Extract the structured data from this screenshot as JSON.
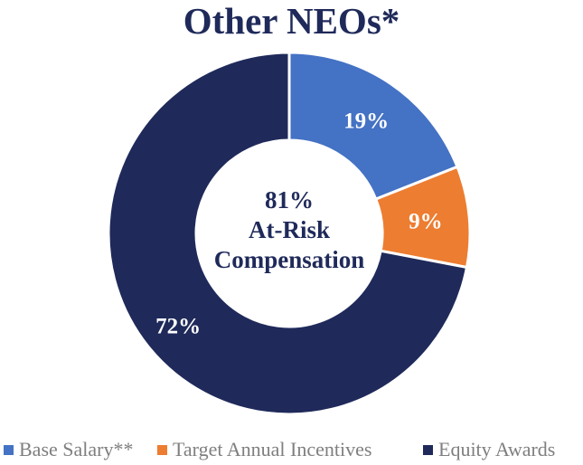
{
  "chart_data": {
    "type": "pie",
    "title": "Other NEOs*",
    "center_label": [
      "81%",
      "At-Risk",
      "Compensation"
    ],
    "slices": [
      {
        "label": "Base Salary**",
        "value": 19,
        "value_label": "19%",
        "color": "#4472c4"
      },
      {
        "label": "Target Annual Incentives",
        "value": 9,
        "value_label": "9%",
        "color": "#ed7d31"
      },
      {
        "label": "Equity Awards",
        "value": 72,
        "value_label": "72%",
        "color": "#1f2a5a"
      }
    ],
    "legend_position": "bottom"
  }
}
